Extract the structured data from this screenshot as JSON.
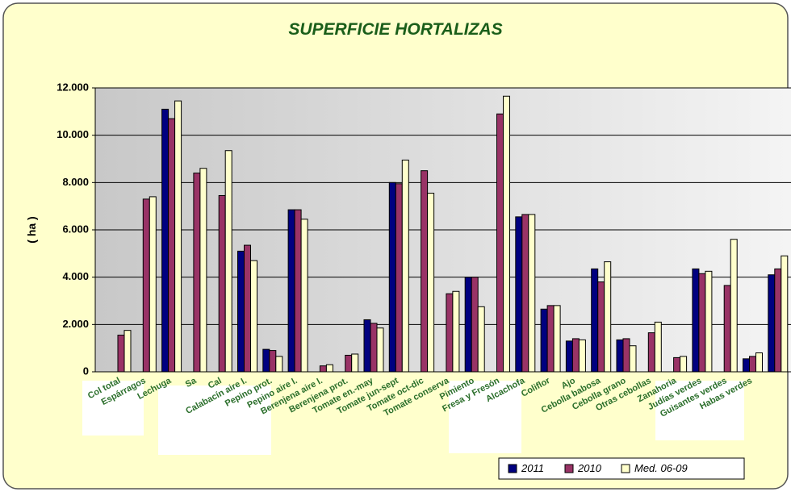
{
  "chart_data": {
    "type": "bar",
    "title": "SUPERFICIE HORTALIZAS",
    "y_label": "( ha )",
    "categories": [
      "Col total",
      "Espárragos",
      "Lechuga",
      "Sa",
      "Cal",
      "Calabacín aire l.",
      "Pepino prot.",
      "Pepino aire l.",
      "Berenjena aire l.",
      "Berenjena prot.",
      "Tomate en.-may",
      "Tomate jun-sept",
      "Tomate oct-dic",
      "Tomate conserva",
      "Pimiento",
      "Fresa y Fresón",
      "Alcachofa",
      "Coliflor",
      "Ajo",
      "Cebolla babosa",
      "Cebolla grano",
      "Otras cebollas",
      "Zanahoria",
      "Judías verdes",
      "Guisantes verdes",
      "Habas verdes",
      null
    ],
    "series": [
      {
        "name": "2011",
        "color": "#000080",
        "values": [
          null,
          null,
          11100,
          null,
          null,
          5100,
          950,
          6850,
          null,
          null,
          2200,
          8000,
          null,
          null,
          4000,
          null,
          6550,
          2650,
          1300,
          4350,
          1350,
          null,
          null,
          4350,
          null,
          550,
          4100
        ]
      },
      {
        "name": "2010",
        "color": "#993366",
        "values": [
          1550,
          7300,
          10700,
          8400,
          7450,
          5350,
          900,
          6850,
          250,
          700,
          2050,
          7950,
          8500,
          3300,
          4000,
          10900,
          6650,
          2800,
          1400,
          3800,
          1400,
          1650,
          600,
          4150,
          3650,
          650,
          4350
        ]
      },
      {
        "name": "Med. 06-09",
        "color": "#ffffcc",
        "values": [
          1750,
          7400,
          11450,
          8600,
          9350,
          4700,
          650,
          6450,
          300,
          750,
          1850,
          8950,
          7550,
          3400,
          2750,
          11650,
          6650,
          2800,
          1350,
          4650,
          1100,
          2100,
          650,
          4250,
          5600,
          800,
          4900
        ]
      }
    ],
    "ylim": [
      0,
      12000
    ],
    "yticks": [
      0,
      {
        "value": 2000,
        "label": "2.000"
      },
      {
        "value": 4000,
        "label": "4.000"
      },
      {
        "value": 6000,
        "label": "6.000"
      },
      {
        "value": 8000,
        "label": "8.000"
      },
      {
        "value": 10000,
        "label": "10.000"
      },
      {
        "value": 12000,
        "label": "12.000"
      }
    ],
    "grid": true,
    "legend": "bottom-right"
  }
}
